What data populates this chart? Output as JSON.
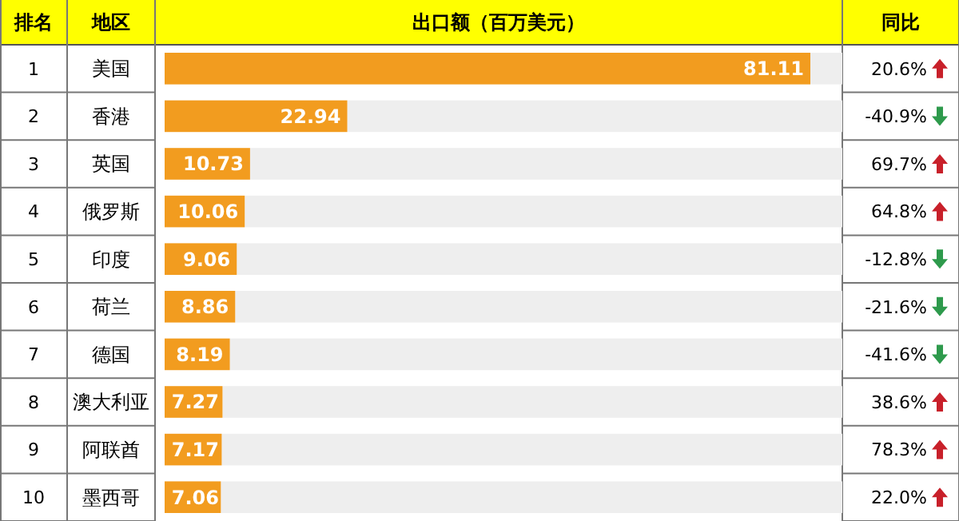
{
  "chart_data": {
    "type": "bar",
    "orientation": "horizontal",
    "title": "出口额（百万美元）",
    "ylabel": "地区",
    "categories": [
      "美国",
      "香港",
      "英国",
      "俄罗斯",
      "印度",
      "荷兰",
      "德国",
      "澳大利亚",
      "阿联酋",
      "墨西哥"
    ],
    "values": [
      81.11,
      22.94,
      10.73,
      10.06,
      9.06,
      8.86,
      8.19,
      7.27,
      7.17,
      7.06
    ],
    "color": "#f29c1f",
    "data_labels": true,
    "annotations": [
      "排名",
      "同比",
      "1",
      "2",
      "3",
      "4",
      "5",
      "6",
      "7",
      "8",
      "9",
      "10",
      "20.6%",
      "-40.9%",
      "69.7%",
      "64.8%",
      "-12.8%",
      "-21.6%",
      "-41.6%",
      "38.6%",
      "78.3%",
      "22.0%"
    ]
  }
}
